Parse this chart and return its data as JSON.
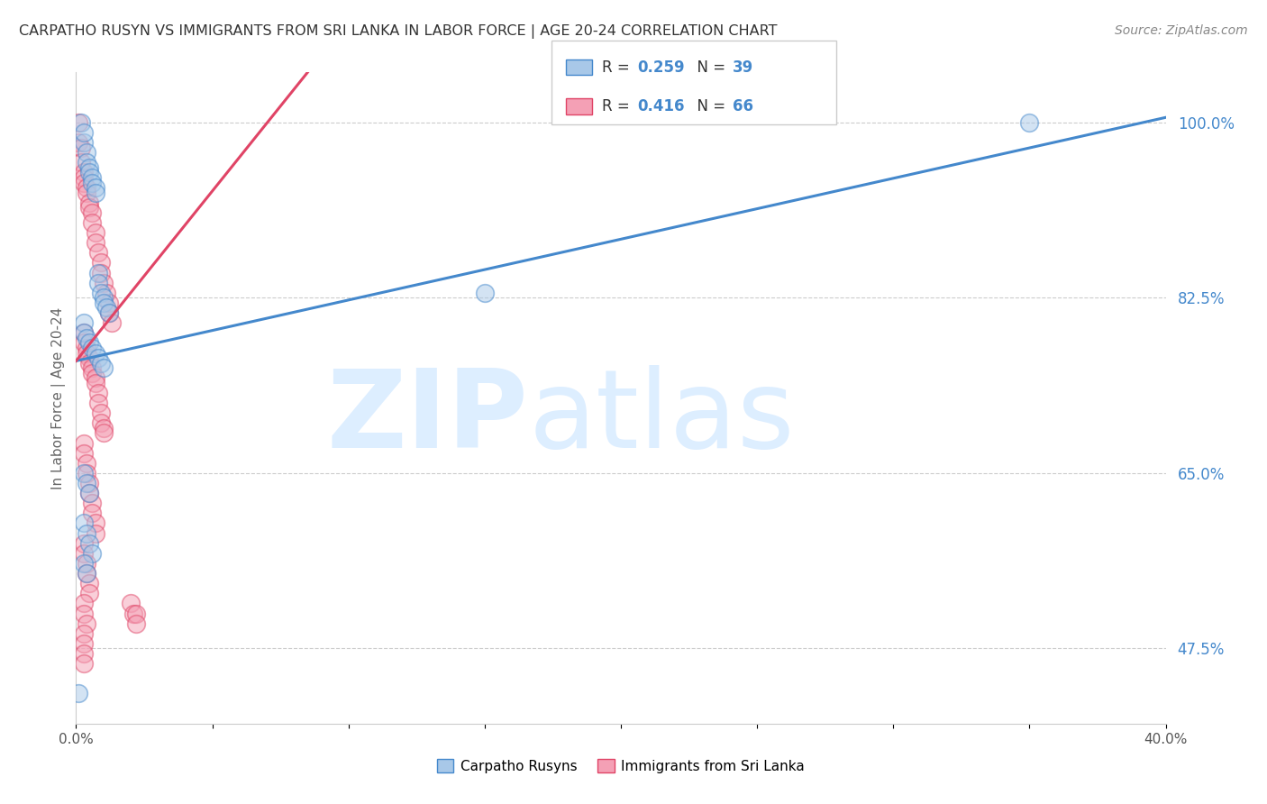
{
  "title": "CARPATHO RUSYN VS IMMIGRANTS FROM SRI LANKA IN LABOR FORCE | AGE 20-24 CORRELATION CHART",
  "source": "Source: ZipAtlas.com",
  "ylabel": "In Labor Force | Age 20-24",
  "xlim": [
    0.0,
    0.4
  ],
  "ylim": [
    0.4,
    1.05
  ],
  "yticks_right": [
    0.475,
    0.65,
    0.825,
    1.0
  ],
  "ytick_right_labels": [
    "47.5%",
    "65.0%",
    "82.5%",
    "100.0%"
  ],
  "color_blue": "#a8c8e8",
  "color_pink": "#f4a0b5",
  "color_trendline_blue": "#4488cc",
  "color_trendline_pink": "#e04466",
  "watermark_zip": "ZIP",
  "watermark_atlas": "atlas",
  "watermark_color": "#ddeeff",
  "blue_trend_x": [
    0.0,
    0.4
  ],
  "blue_trend_y": [
    0.762,
    1.005
  ],
  "pink_trend_x": [
    0.0,
    0.085
  ],
  "pink_trend_y": [
    0.762,
    1.05
  ],
  "blue_x": [
    0.002,
    0.003,
    0.004,
    0.004,
    0.005,
    0.005,
    0.006,
    0.006,
    0.007,
    0.007,
    0.008,
    0.008,
    0.009,
    0.01,
    0.01,
    0.011,
    0.012,
    0.003,
    0.003,
    0.004,
    0.005,
    0.006,
    0.007,
    0.008,
    0.009,
    0.01,
    0.003,
    0.004,
    0.005,
    0.003,
    0.004,
    0.005,
    0.006,
    0.003,
    0.004,
    0.15,
    0.35,
    0.003,
    0.001
  ],
  "blue_y": [
    1.0,
    0.98,
    0.97,
    0.96,
    0.955,
    0.95,
    0.945,
    0.94,
    0.935,
    0.93,
    0.85,
    0.84,
    0.83,
    0.825,
    0.82,
    0.815,
    0.81,
    0.8,
    0.79,
    0.785,
    0.78,
    0.775,
    0.77,
    0.765,
    0.76,
    0.755,
    0.65,
    0.64,
    0.63,
    0.6,
    0.59,
    0.58,
    0.57,
    0.56,
    0.55,
    0.83,
    1.0,
    0.99,
    0.43
  ],
  "pink_x": [
    0.001,
    0.001,
    0.002,
    0.002,
    0.003,
    0.003,
    0.003,
    0.004,
    0.004,
    0.005,
    0.005,
    0.006,
    0.006,
    0.007,
    0.007,
    0.008,
    0.009,
    0.009,
    0.01,
    0.011,
    0.012,
    0.012,
    0.013,
    0.003,
    0.003,
    0.004,
    0.004,
    0.005,
    0.005,
    0.006,
    0.006,
    0.007,
    0.007,
    0.008,
    0.008,
    0.009,
    0.009,
    0.01,
    0.01,
    0.003,
    0.003,
    0.004,
    0.004,
    0.005,
    0.005,
    0.006,
    0.006,
    0.007,
    0.007,
    0.003,
    0.003,
    0.004,
    0.004,
    0.005,
    0.005,
    0.003,
    0.003,
    0.004,
    0.003,
    0.003,
    0.003,
    0.003,
    0.02,
    0.021,
    0.022,
    0.022
  ],
  "pink_y": [
    1.0,
    0.98,
    0.975,
    0.96,
    0.95,
    0.945,
    0.94,
    0.935,
    0.93,
    0.92,
    0.915,
    0.91,
    0.9,
    0.89,
    0.88,
    0.87,
    0.86,
    0.85,
    0.84,
    0.83,
    0.82,
    0.81,
    0.8,
    0.79,
    0.78,
    0.775,
    0.77,
    0.765,
    0.76,
    0.755,
    0.75,
    0.745,
    0.74,
    0.73,
    0.72,
    0.71,
    0.7,
    0.695,
    0.69,
    0.68,
    0.67,
    0.66,
    0.65,
    0.64,
    0.63,
    0.62,
    0.61,
    0.6,
    0.59,
    0.58,
    0.57,
    0.56,
    0.55,
    0.54,
    0.53,
    0.52,
    0.51,
    0.5,
    0.49,
    0.48,
    0.47,
    0.46,
    0.52,
    0.51,
    0.51,
    0.5
  ]
}
